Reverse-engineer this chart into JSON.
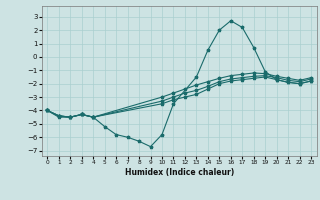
{
  "xlabel": "Humidex (Indice chaleur)",
  "xlim": [
    -0.5,
    23.5
  ],
  "ylim": [
    -7.4,
    3.8
  ],
  "yticks": [
    3,
    2,
    1,
    0,
    -1,
    -2,
    -3,
    -4,
    -5,
    -6,
    -7
  ],
  "xticks": [
    0,
    1,
    2,
    3,
    4,
    5,
    6,
    7,
    8,
    9,
    10,
    11,
    12,
    13,
    14,
    15,
    16,
    17,
    18,
    19,
    20,
    21,
    22,
    23
  ],
  "background_color": "#cde3e3",
  "grid_color": "#aacfcf",
  "line_color": "#1a6b6b",
  "series": [
    {
      "x": [
        0,
        1,
        2,
        3,
        4,
        5,
        6,
        7,
        8,
        9,
        10,
        11,
        13,
        14,
        15,
        16,
        17,
        18,
        19,
        20,
        21,
        22,
        23
      ],
      "y": [
        -4.0,
        -4.5,
        -4.5,
        -4.3,
        -4.5,
        -5.2,
        -5.8,
        -6.0,
        -6.3,
        -6.7,
        -5.8,
        -3.5,
        -1.5,
        0.5,
        2.0,
        2.7,
        2.2,
        0.7,
        -1.1,
        -1.7,
        -1.9,
        -2.0,
        -1.8
      ]
    },
    {
      "x": [
        0,
        1,
        2,
        3,
        4,
        10,
        11,
        12,
        13,
        14,
        15,
        16,
        17,
        18,
        19,
        20,
        21,
        22,
        23
      ],
      "y": [
        -4.0,
        -4.4,
        -4.5,
        -4.3,
        -4.5,
        -3.5,
        -3.2,
        -3.0,
        -2.8,
        -2.4,
        -2.0,
        -1.8,
        -1.7,
        -1.6,
        -1.5,
        -1.7,
        -1.9,
        -2.0,
        -1.8
      ]
    },
    {
      "x": [
        0,
        1,
        2,
        3,
        4,
        10,
        11,
        12,
        13,
        14,
        15,
        16,
        17,
        18,
        19,
        20,
        21,
        22,
        23
      ],
      "y": [
        -4.0,
        -4.4,
        -4.5,
        -4.3,
        -4.5,
        -3.3,
        -3.0,
        -2.7,
        -2.5,
        -2.2,
        -1.85,
        -1.65,
        -1.55,
        -1.45,
        -1.4,
        -1.55,
        -1.75,
        -1.85,
        -1.65
      ]
    },
    {
      "x": [
        0,
        1,
        2,
        3,
        4,
        10,
        11,
        12,
        13,
        14,
        15,
        16,
        17,
        18,
        19,
        20,
        21,
        22,
        23
      ],
      "y": [
        -4.0,
        -4.4,
        -4.5,
        -4.3,
        -4.5,
        -3.0,
        -2.7,
        -2.4,
        -2.1,
        -1.85,
        -1.6,
        -1.4,
        -1.3,
        -1.2,
        -1.25,
        -1.45,
        -1.6,
        -1.75,
        -1.55
      ]
    }
  ]
}
